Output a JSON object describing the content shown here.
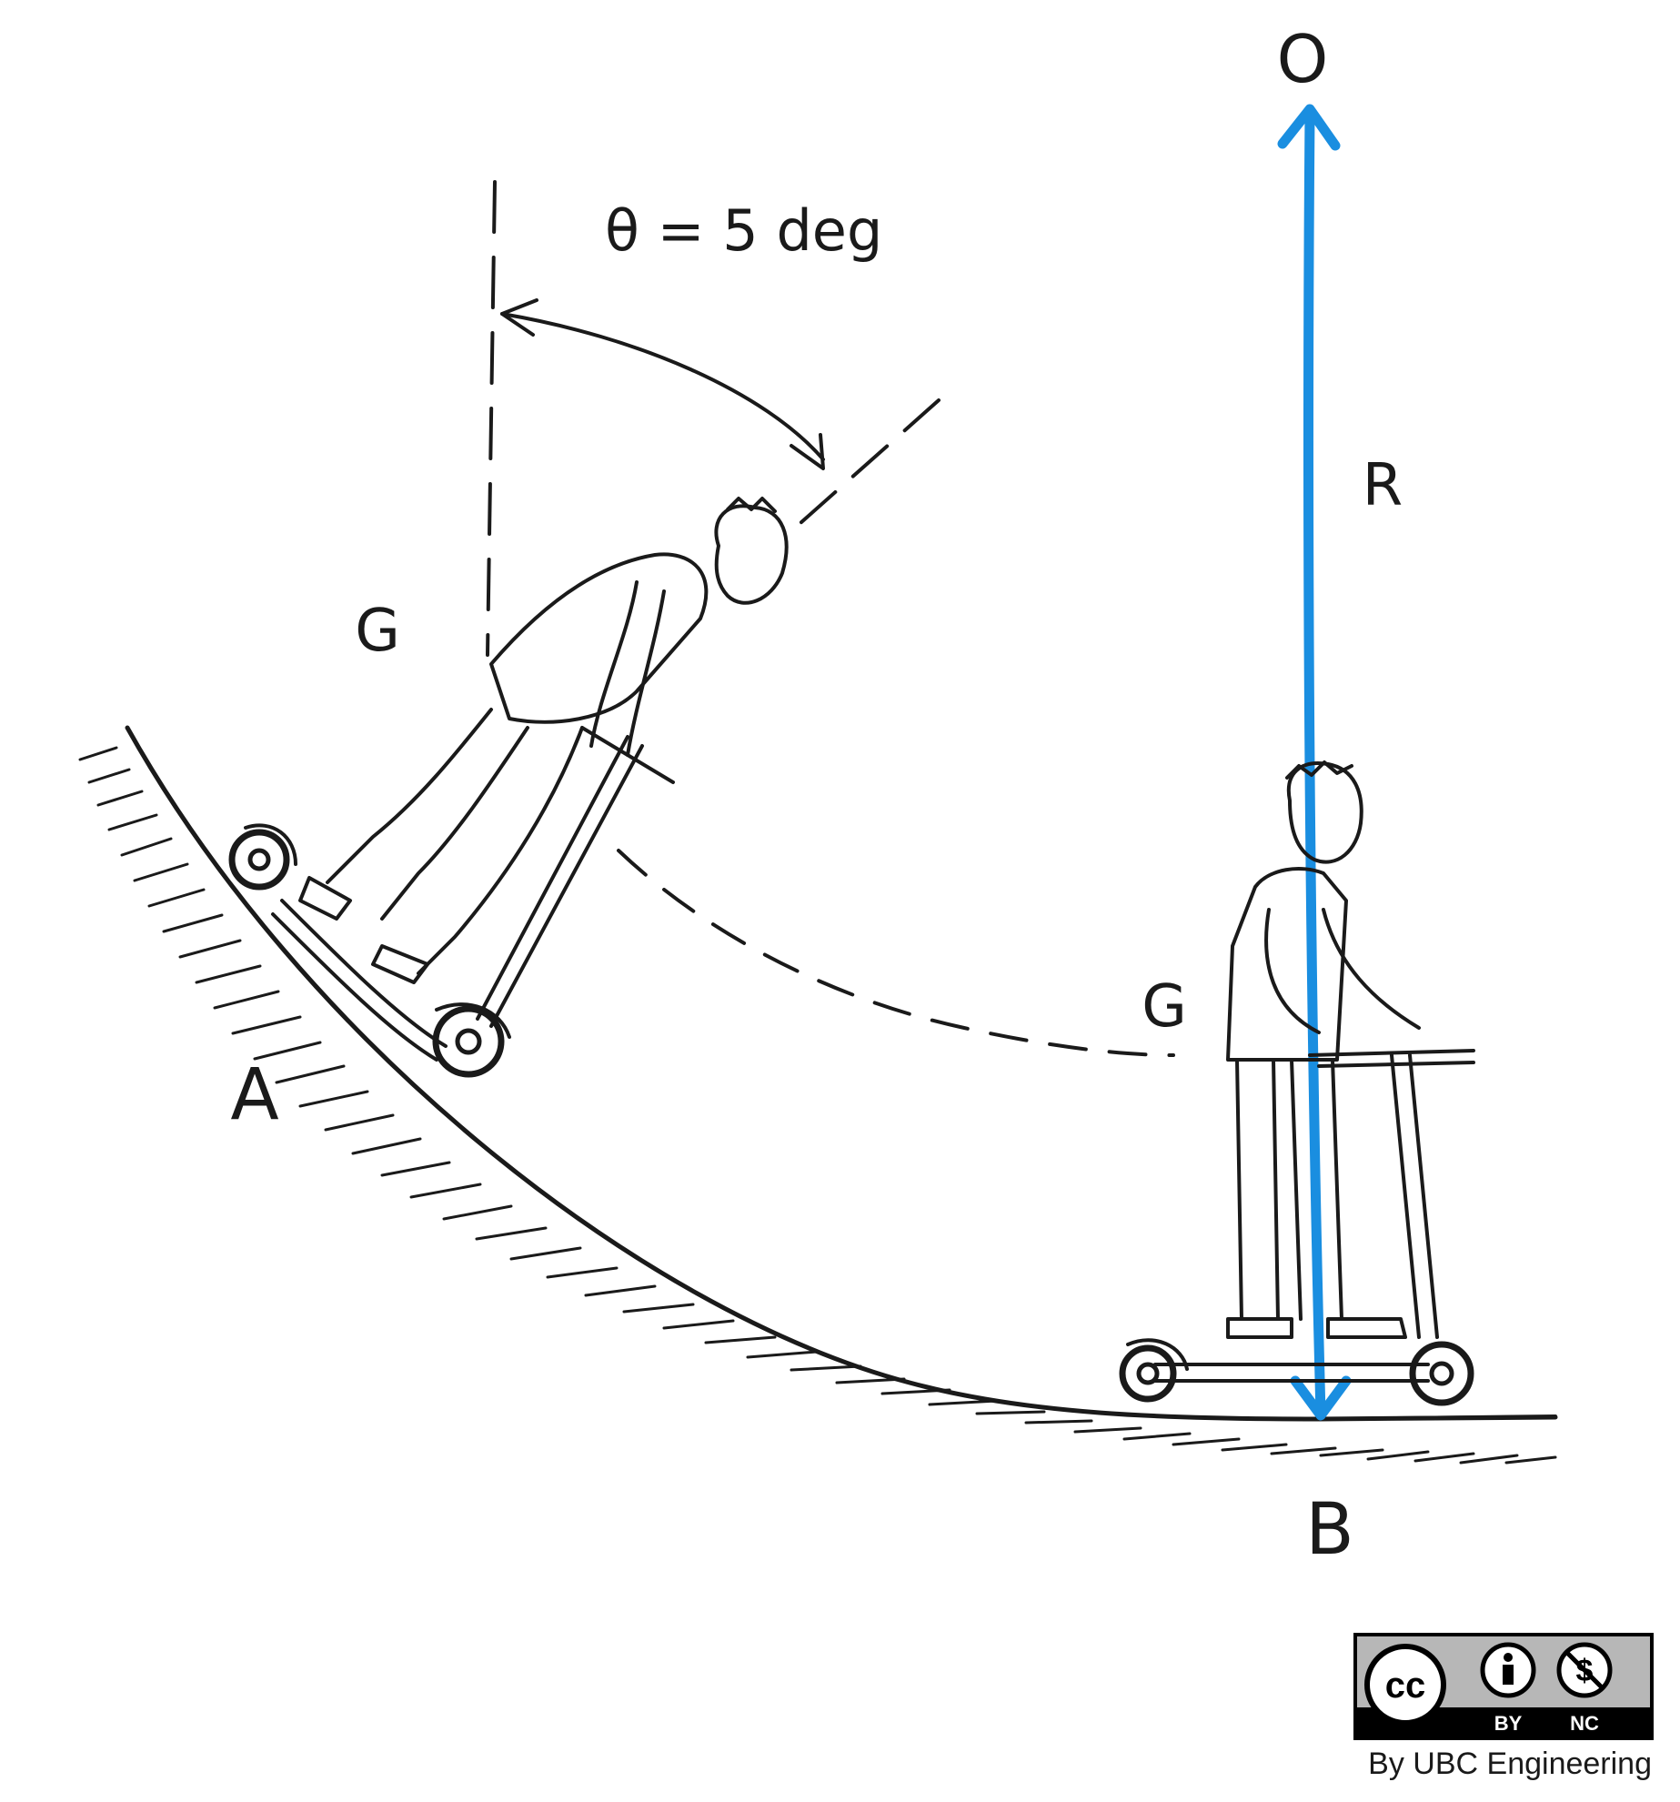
{
  "labels": {
    "center": "O",
    "angle": "θ = 5 deg",
    "radius": "R",
    "cog_tilted": "G",
    "cog_path": "G",
    "point_a": "A",
    "point_b": "B"
  },
  "license": {
    "cc": "cc",
    "by": "BY",
    "nc": "NC",
    "credit": "By UBC Engineering"
  },
  "colors": {
    "ink": "#1a1a1a",
    "radius_line": "#1a8ee0",
    "badge_gray": "#b7b7b7"
  }
}
